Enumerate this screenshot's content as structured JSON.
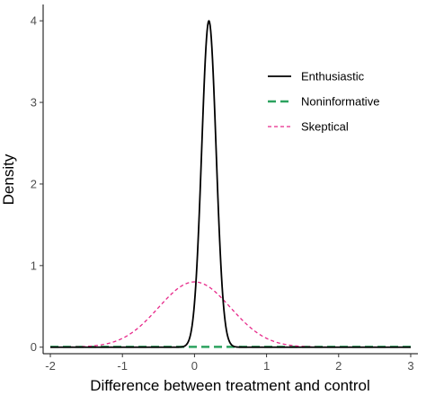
{
  "chart_data": {
    "type": "line",
    "title": "",
    "xlabel": "Difference between treatment and control",
    "ylabel": "Density",
    "xlim": [
      -2.1,
      3.1
    ],
    "ylim": [
      -0.08,
      4.2
    ],
    "x_ticks": [
      -2,
      -1,
      0,
      1,
      2,
      3
    ],
    "x_tick_labels": [
      "-2",
      "-1",
      "0",
      "1",
      "2",
      "3"
    ],
    "y_ticks": [
      0,
      1,
      2,
      3,
      4
    ],
    "y_tick_labels": [
      "0",
      "1",
      "2",
      "3",
      "4"
    ],
    "grid": false,
    "legend_position": "top-right",
    "x_range": [
      -2,
      3
    ],
    "series": [
      {
        "name": "Enthusiastic",
        "color": "#000000",
        "dash": "solid",
        "distribution": "normal",
        "mean": 0.2,
        "sd": 0.1,
        "peak_density": 4.0
      },
      {
        "name": "Noninformative",
        "color": "#2ca25f",
        "dash": "longdash",
        "distribution": "normal",
        "mean": 0,
        "sd": 100,
        "peak_density": 0.004
      },
      {
        "name": "Skeptical",
        "color": "#e7298a",
        "dash": "dashed",
        "distribution": "normal",
        "mean": 0,
        "sd": 0.5,
        "peak_density": 0.8
      }
    ]
  }
}
